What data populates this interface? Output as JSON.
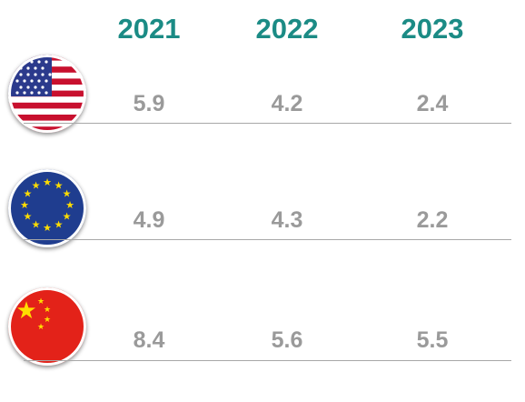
{
  "chart_data": {
    "type": "table",
    "columns": [
      "2021",
      "2022",
      "2023"
    ],
    "rows": [
      {
        "flag_icon": "us-flag-icon",
        "values": [
          "5.9",
          "4.2",
          "2.4"
        ]
      },
      {
        "flag_icon": "eu-flag-icon",
        "values": [
          "4.9",
          "4.3",
          "2.2"
        ]
      },
      {
        "flag_icon": "china-flag-icon",
        "values": [
          "8.4",
          "5.6",
          "5.5"
        ]
      }
    ],
    "colors": {
      "header": "#1b8b85",
      "value": "#9a9a9a",
      "rule": "#a8a8a8"
    }
  }
}
